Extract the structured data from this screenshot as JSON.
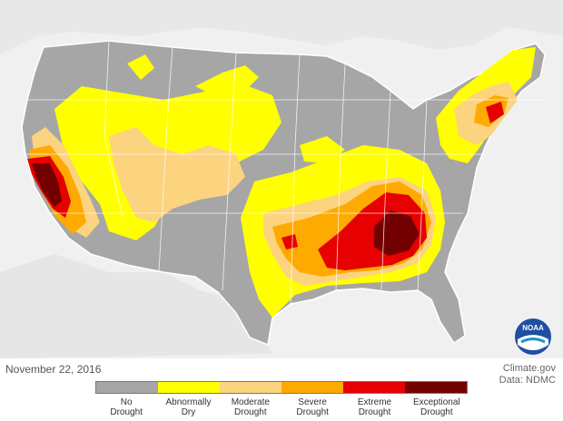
{
  "map": {
    "date": "November 22, 2016",
    "credit_site": "Climate.gov",
    "credit_data": "Data: NDMC",
    "logo_text": "NOAA"
  },
  "legend": {
    "items": [
      {
        "label_1": "No",
        "label_2": "Drought",
        "color": "#a6a6a6"
      },
      {
        "label_1": "Abnormally",
        "label_2": "Dry",
        "color": "#ffff00"
      },
      {
        "label_1": "Moderate",
        "label_2": "Drought",
        "color": "#fcd37f"
      },
      {
        "label_1": "Severe",
        "label_2": "Drought",
        "color": "#ffaa00"
      },
      {
        "label_1": "Extreme",
        "label_2": "Drought",
        "color": "#e60000"
      },
      {
        "label_1": "Exceptional",
        "label_2": "Drought",
        "color": "#730000"
      }
    ]
  },
  "colors": {
    "background": "#ffffff",
    "land_outside": "#ebebeb",
    "water": "#ffffff",
    "border": "#ffffff"
  }
}
